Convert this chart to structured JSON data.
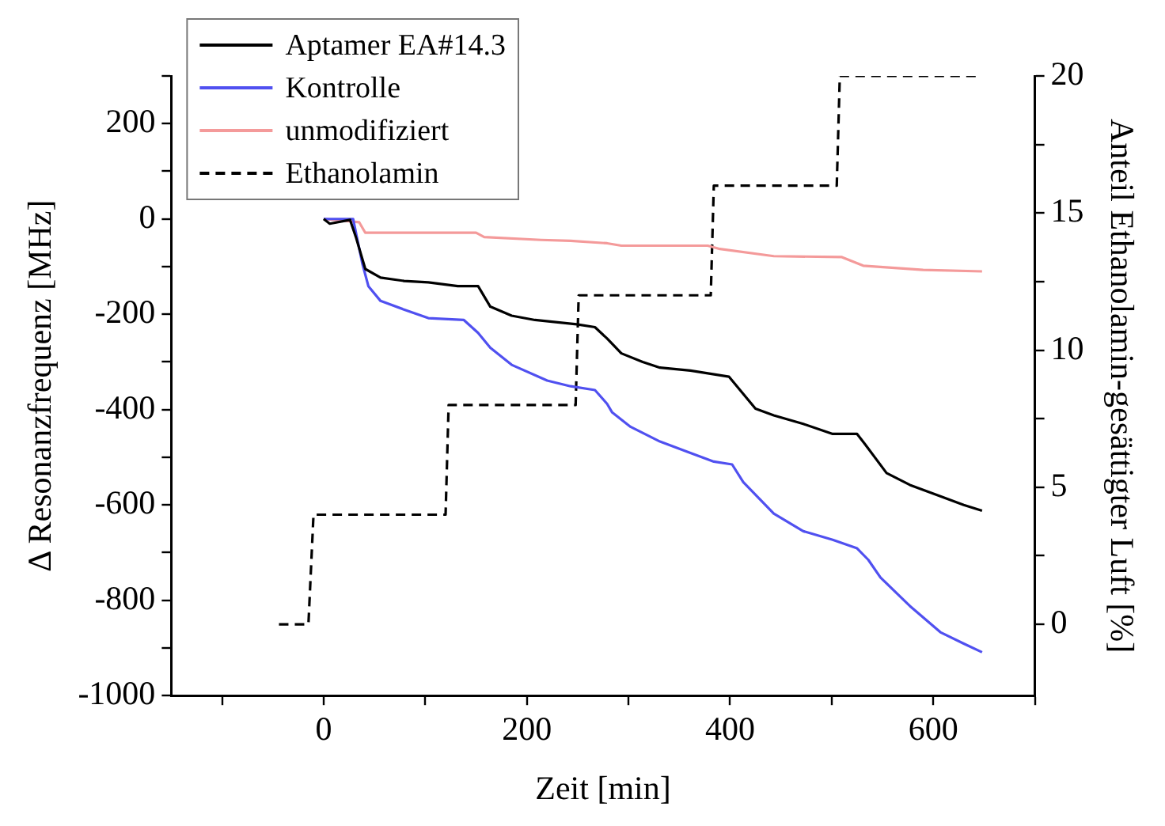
{
  "chart_data": {
    "type": "line",
    "xlabel": "Zeit [min]",
    "ylabel": "Δ Resonanzfrequenz [MHz]",
    "y2label": "Anteil Ethanolamin-gesättigter Luft [%]",
    "xlim": [
      -150,
      700
    ],
    "xticks": [
      {
        "value": -100,
        "label": null
      },
      0,
      {
        "value": 100,
        "label": null
      },
      200,
      {
        "value": 300,
        "label": null
      },
      400,
      {
        "value": 500,
        "label": null
      },
      600,
      {
        "value": 700,
        "label": null
      }
    ],
    "ylim": [
      -1000,
      300
    ],
    "yticks": [
      -1000,
      {
        "value": -900,
        "label": null
      },
      -800,
      {
        "value": -700,
        "label": null
      },
      -600,
      {
        "value": -500,
        "label": null
      },
      -400,
      {
        "value": -300,
        "label": null
      },
      -200,
      {
        "value": -100,
        "label": null
      },
      0,
      {
        "value": 100,
        "label": null
      },
      200,
      {
        "value": 300,
        "label": null
      }
    ],
    "y2lim": [
      -2.6,
      20
    ],
    "y2ticks": [
      0,
      {
        "value": 2.5,
        "label": null
      },
      5,
      {
        "value": 7.5,
        "label": null
      },
      10,
      {
        "value": 12.5,
        "label": null
      },
      15,
      {
        "value": 17.5,
        "label": null
      },
      20
    ],
    "grid": false,
    "legend": "top left",
    "marker": "none",
    "series": [
      {
        "name": "Aptamer EA#14.3",
        "color": "#000000",
        "line_style": "solid",
        "x": [
          0,
          6,
          26,
          32,
          41,
          56,
          79,
          103,
          132,
          152,
          164,
          185,
          208,
          249,
          267,
          279,
          293,
          314,
          331,
          361,
          399,
          425,
          443,
          472,
          501,
          525,
          533,
          554,
          577,
          607,
          630,
          648
        ],
        "values": [
          0,
          -10,
          -2,
          -40,
          -105,
          -123,
          -130,
          -133,
          -141,
          -141,
          -184,
          -203,
          -212,
          -221,
          -227,
          -251,
          -282,
          -300,
          -312,
          -318,
          -331,
          -398,
          -412,
          -430,
          -451,
          -451,
          -473,
          -533,
          -558,
          -582,
          -600,
          -612
        ]
      },
      {
        "name": "Kontrolle",
        "color": "#5050f0",
        "line_style": "solid",
        "x": [
          0,
          29,
          38,
          44,
          56,
          79,
          103,
          138,
          152,
          164,
          185,
          220,
          243,
          267,
          279,
          284,
          302,
          331,
          361,
          384,
          402,
          413,
          443,
          472,
          501,
          525,
          536,
          548,
          577,
          607,
          630,
          648
        ],
        "values": [
          0,
          0,
          -93,
          -141,
          -172,
          -190,
          -208,
          -212,
          -239,
          -270,
          -306,
          -339,
          -351,
          -359,
          -388,
          -406,
          -436,
          -467,
          -491,
          -509,
          -515,
          -552,
          -618,
          -655,
          -673,
          -691,
          -715,
          -752,
          -812,
          -867,
          -891,
          -909
        ]
      },
      {
        "name": "unmodifiziert",
        "color": "#f49a9a",
        "line_style": "solid",
        "x": [
          0,
          35,
          41,
          150,
          158,
          214,
          243,
          279,
          293,
          378,
          390,
          443,
          510,
          531,
          590,
          648
        ],
        "values": [
          0,
          -7,
          -29,
          -29,
          -38,
          -44,
          -46,
          -51,
          -56,
          -56,
          -63,
          -78,
          -80,
          -98,
          -107,
          -110
        ]
      },
      {
        "name": "Ethanolamin",
        "color": "#000000",
        "line_style": "dashed",
        "axis": "y2",
        "x": [
          -44,
          -15,
          -10,
          120,
          123,
          248,
          251,
          381,
          384,
          505,
          508,
          648
        ],
        "values": [
          0,
          0,
          4,
          4,
          8,
          8,
          12,
          12,
          16,
          16,
          20,
          20
        ]
      }
    ]
  }
}
